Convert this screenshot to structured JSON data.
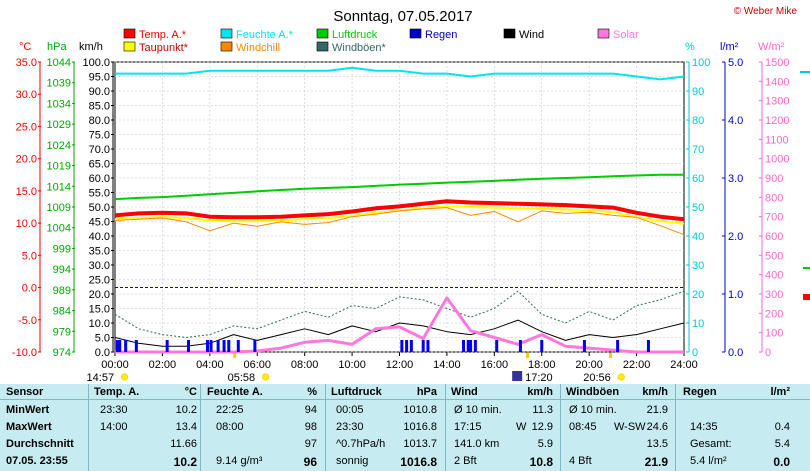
{
  "chart_data": {
    "type": "line",
    "title": "Sonntag, 07.05.2017",
    "credit": "© Weber Mike",
    "x_ticks": [
      "00:00",
      "02:00",
      "04:00",
      "06:00",
      "08:00",
      "10:00",
      "12:00",
      "14:00",
      "16:00",
      "18:00",
      "20:00",
      "22:00",
      "24:00"
    ],
    "axes": {
      "temp": {
        "label": "°C",
        "color": "#ff0000",
        "ticks": [
          "35.0",
          "30.0",
          "25.0",
          "20.0",
          "15.0",
          "10.0",
          "5.0",
          "0.0",
          "-5.0",
          "-10.0"
        ],
        "range": [
          -10,
          35
        ]
      },
      "hpa": {
        "label": "hPa",
        "color": "#00aa00",
        "ticks": [
          "1044",
          "1039",
          "1034",
          "1029",
          "1024",
          "1019",
          "1014",
          "1009",
          "1004",
          "999",
          "994",
          "989",
          "984",
          "979",
          "974"
        ],
        "range": [
          974,
          1044
        ]
      },
      "kmh": {
        "label": "km/h",
        "color": "#000000",
        "ticks": [
          "100.0",
          "95.0",
          "90.0",
          "85.0",
          "80.0",
          "75.0",
          "70.0",
          "65.0",
          "60.0",
          "55.0",
          "50.0",
          "45.0",
          "40.0",
          "35.0",
          "30.0",
          "25.0",
          "20.0",
          "15.0",
          "10.0",
          "5.0",
          "0.0"
        ],
        "range": [
          0,
          100
        ]
      },
      "hum": {
        "label": "%",
        "color": "#00cccc",
        "ticks": [
          "100",
          "90",
          "80",
          "70",
          "60",
          "50",
          "40",
          "30",
          "20",
          "10",
          "0"
        ],
        "range": [
          0,
          100
        ]
      },
      "rain": {
        "label": "l/m²",
        "color": "#0000cc",
        "ticks": [
          "5.0",
          "4.0",
          "3.0",
          "2.0",
          "1.0",
          "0.0"
        ],
        "range": [
          0,
          5
        ]
      },
      "solar": {
        "label": "W/m²",
        "color": "#ff66cc",
        "ticks": [
          "1500",
          "1400",
          "1300",
          "1200",
          "1100",
          "1000",
          "900",
          "800",
          "700",
          "600",
          "500",
          "400",
          "300",
          "200",
          "100",
          "0"
        ],
        "range": [
          0,
          1500
        ]
      }
    },
    "legend": [
      {
        "name": "Temp. A.*",
        "color": "#ff0000"
      },
      {
        "name": "Feuchte A.*",
        "color": "#00e5ee"
      },
      {
        "name": "Luftdruck",
        "color": "#00cc00"
      },
      {
        "name": "Regen",
        "color": "#0000cc"
      },
      {
        "name": "Wind",
        "color": "#000000"
      },
      {
        "name": "Solar",
        "color": "#ff77dd"
      },
      {
        "name": "Taupunkt*",
        "color": "#ffff00"
      },
      {
        "name": "Windchill",
        "color": "#ff8800"
      },
      {
        "name": "Windböen*",
        "color": "#336666"
      }
    ],
    "x_hours": [
      0,
      1,
      2,
      3,
      4,
      5,
      6,
      7,
      8,
      9,
      10,
      11,
      12,
      13,
      14,
      15,
      16,
      17,
      18,
      19,
      20,
      21,
      22,
      23,
      24
    ],
    "series": [
      {
        "key": "temp",
        "axis": "temp",
        "width": 4,
        "color": "#ff0000",
        "values": [
          11.2,
          11.5,
          11.6,
          11.5,
          11.0,
          10.9,
          10.9,
          11.0,
          11.2,
          11.4,
          11.8,
          12.3,
          12.6,
          13.0,
          13.4,
          13.2,
          13.1,
          13.0,
          12.9,
          12.8,
          12.6,
          12.4,
          11.6,
          11.0,
          10.6
        ]
      },
      {
        "key": "dew",
        "axis": "temp",
        "width": 2,
        "color": "#ffff00",
        "values": [
          10.6,
          10.8,
          10.9,
          10.8,
          10.4,
          10.3,
          10.3,
          10.4,
          10.6,
          10.8,
          11.1,
          11.6,
          11.9,
          12.3,
          12.6,
          12.5,
          12.4,
          12.3,
          12.2,
          12.1,
          11.9,
          11.7,
          10.9,
          10.3,
          9.9
        ]
      },
      {
        "key": "chill",
        "axis": "temp",
        "width": 1,
        "color": "#ff8800",
        "values": [
          10.4,
          10.6,
          10.8,
          10.2,
          8.8,
          10.0,
          9.5,
          10.2,
          9.8,
          10.1,
          11.0,
          11.4,
          11.9,
          12.2,
          12.4,
          11.2,
          11.8,
          10.2,
          11.9,
          11.5,
          11.7,
          11.2,
          10.9,
          9.6,
          8.2
        ]
      },
      {
        "key": "hpa",
        "axis": "hpa",
        "width": 2,
        "color": "#00cc00",
        "values": [
          1010.9,
          1011.2,
          1011.4,
          1011.7,
          1012.1,
          1012.4,
          1012.8,
          1013.1,
          1013.4,
          1013.6,
          1013.8,
          1014.1,
          1014.4,
          1014.6,
          1014.9,
          1015.1,
          1015.3,
          1015.6,
          1015.8,
          1016.0,
          1016.2,
          1016.4,
          1016.6,
          1016.8,
          1016.8
        ]
      },
      {
        "key": "hum",
        "axis": "hum",
        "width": 2,
        "color": "#00e5ee",
        "values": [
          96,
          96,
          96,
          96,
          97,
          97,
          97,
          97,
          97,
          97,
          98,
          97,
          97,
          96,
          96,
          95,
          96,
          96,
          96,
          96,
          96,
          96,
          95,
          94,
          95
        ]
      },
      {
        "key": "gust",
        "axis": "kmh",
        "width": 1,
        "dashed": true,
        "color": "#336666",
        "values": [
          13,
          8,
          6,
          5,
          6,
          9,
          8,
          11,
          14,
          12,
          16,
          15,
          19,
          18,
          15,
          12,
          15,
          21,
          13,
          10,
          14,
          11,
          16,
          18,
          21
        ]
      },
      {
        "key": "wind",
        "axis": "kmh",
        "width": 1,
        "color": "#000000",
        "values": [
          5,
          3,
          2,
          2,
          3,
          6,
          4,
          6,
          8,
          6,
          9,
          7,
          10,
          9,
          7,
          6,
          8,
          11,
          7,
          4,
          6,
          5,
          6,
          8,
          10
        ]
      },
      {
        "key": "solar",
        "axis": "solar",
        "width": 3,
        "color": "#ff77dd",
        "values": [
          0,
          0,
          0,
          0,
          0,
          0,
          5,
          20,
          50,
          60,
          40,
          120,
          130,
          70,
          280,
          110,
          75,
          40,
          90,
          30,
          20,
          10,
          0,
          0,
          0
        ]
      }
    ],
    "rain_marks": [
      0.1,
      0.2,
      0.45,
      0.9,
      2.2,
      3.1,
      3.9,
      4.05,
      4.35,
      4.6,
      4.8,
      5.2,
      5.9,
      12.1,
      12.3,
      12.5,
      13.0,
      13.2,
      14.7,
      14.9,
      15.0,
      15.2,
      16.1,
      17.1,
      18.0,
      19.8,
      21.2,
      22.5
    ],
    "bottom_marks": [
      {
        "text": "14:57",
        "hour": -1.2,
        "row": 2,
        "sun": true
      },
      {
        "text": "05:58",
        "hour": 4.75,
        "row": 1,
        "sun": true
      },
      {
        "text": "17:20",
        "hour": 17.3,
        "row": 1,
        "sun": false
      },
      {
        "text": "20:56",
        "hour": 19.75,
        "row": 1,
        "sun": true
      }
    ],
    "bottom_tick_hours": [
      5.05,
      17.4,
      20.9
    ]
  },
  "stats": {
    "headers": [
      "Sensor",
      "Temp. A.",
      "°C",
      "Feuchte A.",
      "%",
      "Luftdruck",
      "hPa",
      "Wind",
      "km/h",
      "Windböen",
      "km/h",
      "Regen",
      "l/m²"
    ],
    "rows": [
      {
        "label": "MinWert",
        "temp_time": "23:30",
        "temp_val": "10.2",
        "hum_time": "22:25",
        "hum_val": "94",
        "hpa_time": "00:05",
        "hpa_val": "1010.8",
        "wind_time": "Ø 10 min.",
        "wind_val": "11.3",
        "gust_time": "Ø 10 min.",
        "gust_val": "21.9",
        "rain_time": "",
        "rain_val": ""
      },
      {
        "label": "MaxWert",
        "temp_time": "14:00",
        "temp_val": "13.4",
        "hum_time": "08:00",
        "hum_val": "98",
        "hpa_time": "23:30",
        "hpa_val": "1016.8",
        "wind_time": "17:15",
        "wind_dir": "W",
        "wind_val": "12.9",
        "gust_time": "08:45",
        "gust_dir": "W-SW",
        "gust_val": "24.6",
        "rain_time": "14:35",
        "rain_val": "0.4"
      },
      {
        "label": "Durchschnitt",
        "temp_time": "",
        "temp_val": "11.66",
        "hum_time": "",
        "hum_val": "97",
        "hpa_time": "^0.7hPa/h",
        "hpa_val": "1013.7",
        "wind_time": "141.0 km",
        "wind_val": "5.9",
        "gust_time": "",
        "gust_val": "13.5",
        "rain_time": "Gesamt:",
        "rain_val": "5.4"
      },
      {
        "label": "07.05. 23:55",
        "temp_time": "",
        "temp_val": "10.2",
        "hum_time": "9.14 g/m³",
        "hum_val": "96",
        "hpa_time": "sonnig",
        "hpa_val": "1016.8",
        "wind_time": "2 Bft",
        "wind_val": "10.8",
        "gust_time": "4 Bft",
        "gust_val": "21.9",
        "rain_time": "5.4 l/m²",
        "rain_val": "0.0"
      }
    ]
  }
}
